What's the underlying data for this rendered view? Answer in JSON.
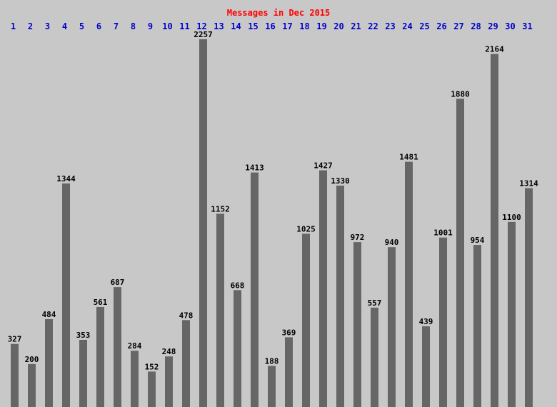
{
  "chart_data": {
    "type": "bar",
    "title": "Messages in Dec 2015",
    "categories": [
      "1",
      "2",
      "3",
      "4",
      "5",
      "6",
      "7",
      "8",
      "9",
      "10",
      "11",
      "12",
      "13",
      "14",
      "15",
      "16",
      "17",
      "18",
      "19",
      "20",
      "21",
      "22",
      "23",
      "24",
      "25",
      "26",
      "27",
      "28",
      "29",
      "30",
      "31"
    ],
    "values": [
      327,
      200,
      484,
      1344,
      353,
      561,
      687,
      284,
      152,
      248,
      478,
      2257,
      1152,
      668,
      1413,
      188,
      369,
      1025,
      1427,
      1330,
      972,
      557,
      940,
      1481,
      439,
      1001,
      1880,
      954,
      2164,
      1100,
      1314
    ],
    "color": "#666666"
  }
}
